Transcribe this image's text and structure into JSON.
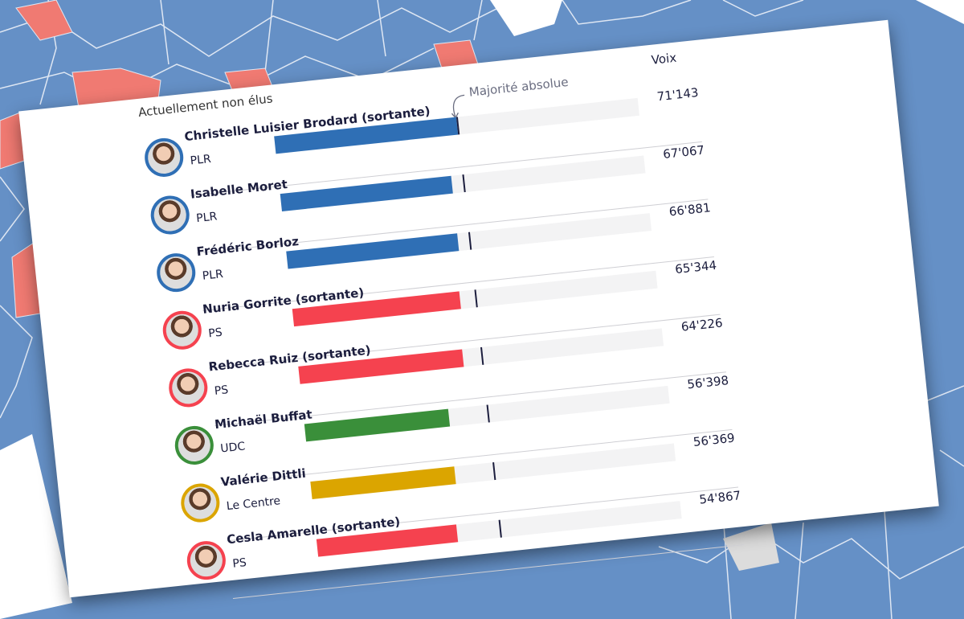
{
  "header": {
    "voix_label": "Voix",
    "section_label": "Actuellement non élus",
    "majority_label": "Majorité absolue"
  },
  "majority_absolue_votes": 71143,
  "party_colors": {
    "PLR": "#2f6fb5",
    "PS": "#f5424f",
    "UDC": "#3a8f3a",
    "Le Centre": "#dba500"
  },
  "candidates": [
    {
      "name": "Christelle Luisier Brodard (sortante)",
      "party": "PLR",
      "votes": 71143,
      "votes_label": "71'143"
    },
    {
      "name": "Isabelle Moret",
      "party": "PLR",
      "votes": 67067,
      "votes_label": "67'067"
    },
    {
      "name": "Frédéric Borloz",
      "party": "PLR",
      "votes": 66881,
      "votes_label": "66'881"
    },
    {
      "name": "Nuria Gorrite (sortante)",
      "party": "PS",
      "votes": 65344,
      "votes_label": "65'344"
    },
    {
      "name": "Rebecca Ruiz (sortante)",
      "party": "PS",
      "votes": 64226,
      "votes_label": "64'226"
    },
    {
      "name": "Michaël Buffat",
      "party": "UDC",
      "votes": 56398,
      "votes_label": "56'398"
    },
    {
      "name": "Valérie Dittli",
      "party": "Le Centre",
      "votes": 56369,
      "votes_label": "56'369"
    },
    {
      "name": "Cesla Amarelle (sortante)",
      "party": "PS",
      "votes": 54867,
      "votes_label": "54'867"
    }
  ]
}
